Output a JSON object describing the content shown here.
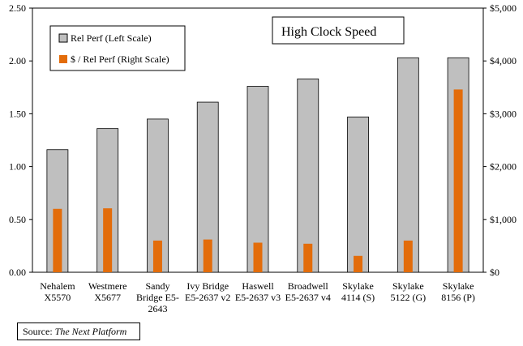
{
  "chart_data": {
    "type": "bar",
    "title": "High Clock Speed",
    "categories": [
      [
        "Nehalem",
        "X5570"
      ],
      [
        "Westmere",
        "X5677"
      ],
      [
        "Sandy",
        "Bridge E5-",
        "2643"
      ],
      [
        "Ivy Bridge",
        "E5-2637 v2"
      ],
      [
        "Haswell",
        "E5-2637 v3"
      ],
      [
        "Broadwell",
        "E5-2637 v4"
      ],
      [
        "Skylake",
        "4114 (S)"
      ],
      [
        "Skylake",
        "5122 (G)"
      ],
      [
        "Skylake",
        "8156 (P)"
      ]
    ],
    "series": [
      {
        "name": "Rel Perf (Left Scale)",
        "axis": "left",
        "color": "#bfbfbf",
        "values": [
          1.16,
          1.36,
          1.45,
          1.61,
          1.76,
          1.83,
          1.47,
          2.03,
          2.03
        ]
      },
      {
        "name": "$ / Rel Perf (Right Scale)",
        "axis": "right",
        "color": "#e36c0a",
        "values": [
          1200,
          1210,
          600,
          620,
          560,
          540,
          310,
          600,
          3460
        ]
      }
    ],
    "y_left": {
      "min": 0,
      "max": 2.5,
      "ticks": [
        "0.00",
        "0.50",
        "1.00",
        "1.50",
        "2.00",
        "2.50"
      ]
    },
    "y_right": {
      "min": 0,
      "max": 5000,
      "ticks": [
        "$0",
        "$1,000",
        "$2,000",
        "$3,000",
        "$4,000",
        "$5,000"
      ]
    },
    "grid": false,
    "legend": "top-left"
  },
  "source": {
    "label": "Source: ",
    "name": "The Next Platform"
  }
}
